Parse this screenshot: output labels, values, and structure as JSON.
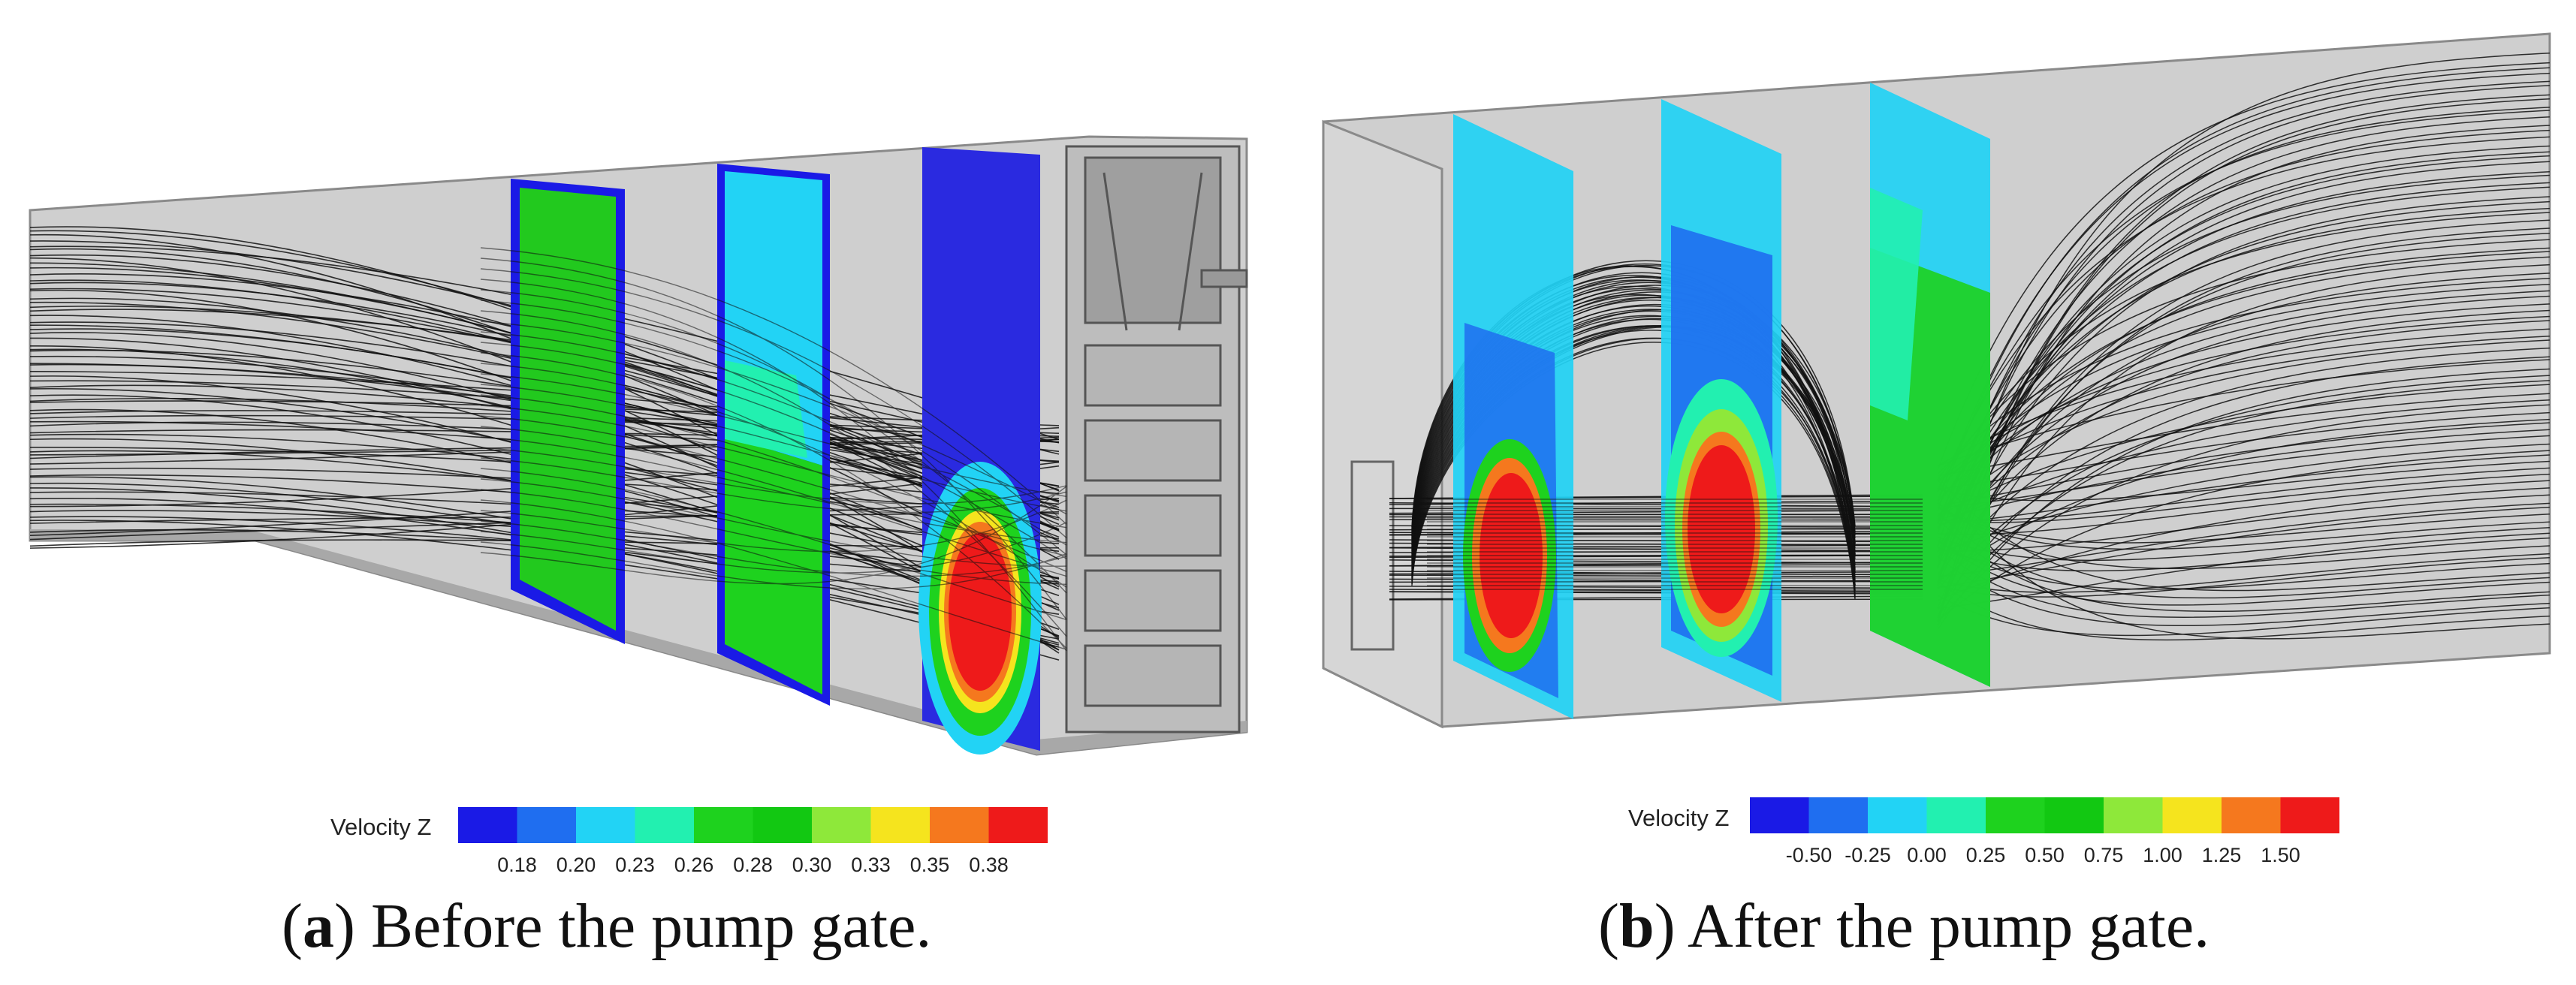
{
  "panels": [
    {
      "id": "a",
      "caption_letter": "a",
      "caption_text": " Before the pump gate.",
      "legend_title": "Velocity Z",
      "legend_ticks": [
        "0.18",
        "0.20",
        "0.23",
        "0.26",
        "0.28",
        "0.30",
        "0.33",
        "0.35",
        "0.38"
      ],
      "legend_colors": [
        "#1a1ae6",
        "#1f6ef0",
        "#22d3f5",
        "#22f0b0",
        "#1ed21e",
        "#12c812",
        "#8ee83a",
        "#f5e41e",
        "#f5781e",
        "#ee1a1a"
      ]
    },
    {
      "id": "b",
      "caption_letter": "b",
      "caption_text": " After the pump gate.",
      "legend_title": "Velocity Z",
      "legend_ticks": [
        "-0.50",
        "-0.25",
        "0.00",
        "0.25",
        "0.50",
        "0.75",
        "1.00",
        "1.25",
        "1.50"
      ],
      "legend_colors": [
        "#1a1ae6",
        "#1f6ef0",
        "#22d3f5",
        "#22f0b0",
        "#1ed21e",
        "#12c812",
        "#8ee83a",
        "#f5e41e",
        "#f5781e",
        "#ee1a1a"
      ]
    }
  ],
  "colors": {
    "channel_wall": "#c9c9c9",
    "channel_dark": "#9c9c9c",
    "streamline": "#111111"
  }
}
